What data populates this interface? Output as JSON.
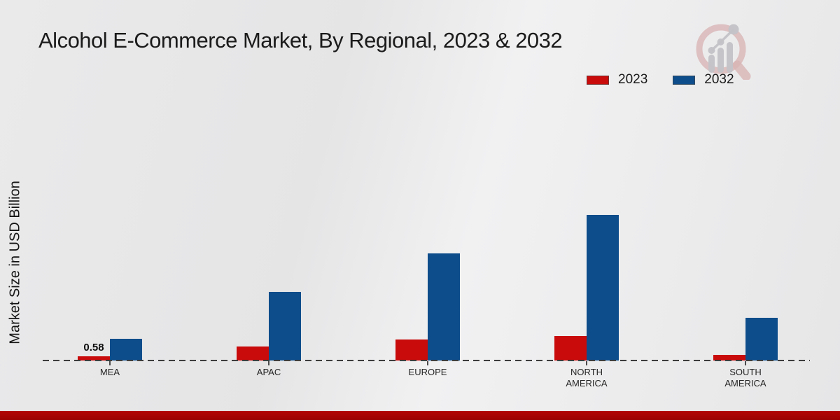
{
  "title": "Alcohol E-Commerce Market, By Regional, 2023 & 2032",
  "y_axis_label": "Market Size in USD Billion",
  "legend": {
    "items": [
      {
        "label": "2023",
        "color": "#c90b0b"
      },
      {
        "label": "2032",
        "color": "#0e4d8b"
      }
    ]
  },
  "watermark_icon": "magnifier-bar-chart-logo",
  "chart_data": {
    "type": "bar",
    "title": "Alcohol E-Commerce Market, By Regional, 2023 & 2032",
    "categories": [
      "MEA",
      "APAC",
      "EUROPE",
      "NORTH AMERICA",
      "SOUTH AMERICA"
    ],
    "series": [
      {
        "name": "2023",
        "color": "#c90b0b",
        "values": [
          0.58,
          1.95,
          2.9,
          3.4,
          0.8
        ]
      },
      {
        "name": "2032",
        "color": "#0e4d8b",
        "values": [
          3.0,
          9.5,
          14.8,
          20.1,
          5.9
        ]
      }
    ],
    "value_labels": [
      {
        "series_index": 0,
        "category_index": 0,
        "text": "0.58"
      }
    ],
    "xlabel": "",
    "ylabel": "Market Size in USD Billion",
    "ylim": [
      0,
      22
    ],
    "grid": false,
    "baseline_style": "dashed",
    "legend_position": "top-right"
  },
  "footer": {
    "accent_bar_color": "#b30505"
  }
}
